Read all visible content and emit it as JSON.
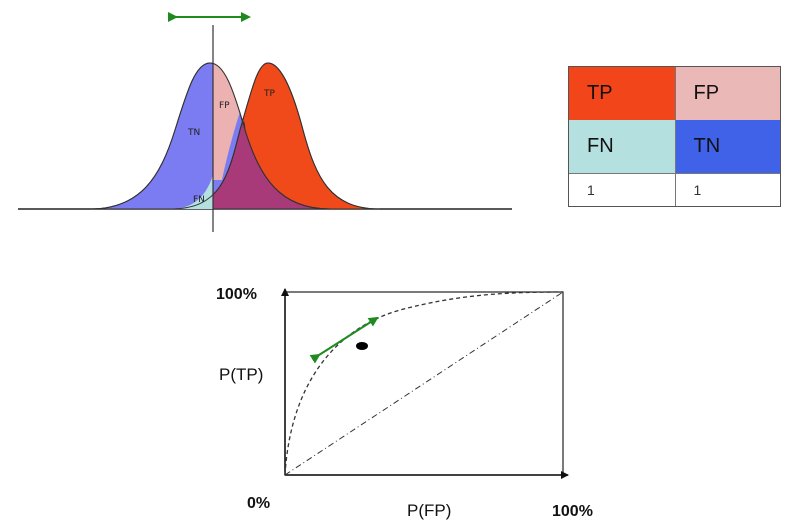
{
  "distribution_diagram": {
    "labels": {
      "tn": "TN",
      "fn": "FN",
      "fp": "FP",
      "tp": "TP"
    },
    "colors": {
      "negative_curve": "#7b7bf2",
      "positive_curve": "#f04a1a",
      "overlap": "#a83a7a",
      "fp_region": "#ecb2b2",
      "fn_region": "#b5e0e0",
      "threshold_arrow": "#1f8a1f"
    }
  },
  "matrix": {
    "cells": [
      {
        "label": "TP",
        "color": "#f2451a"
      },
      {
        "label": "FP",
        "color": "#ebb8b8"
      },
      {
        "label": "FN",
        "color": "#b4e0e0"
      },
      {
        "label": "TN",
        "color": "#3f62e8"
      },
      {
        "label": "1",
        "color": "#ffffff"
      },
      {
        "label": "1",
        "color": "#ffffff"
      }
    ]
  },
  "roc": {
    "y_top_label": "100%",
    "y_label": "P(TP)",
    "x_origin_label": "0%",
    "x_label": "P(FP)",
    "x_right_label": "100%",
    "operating_point_arrow_color": "#1f8a1f"
  }
}
